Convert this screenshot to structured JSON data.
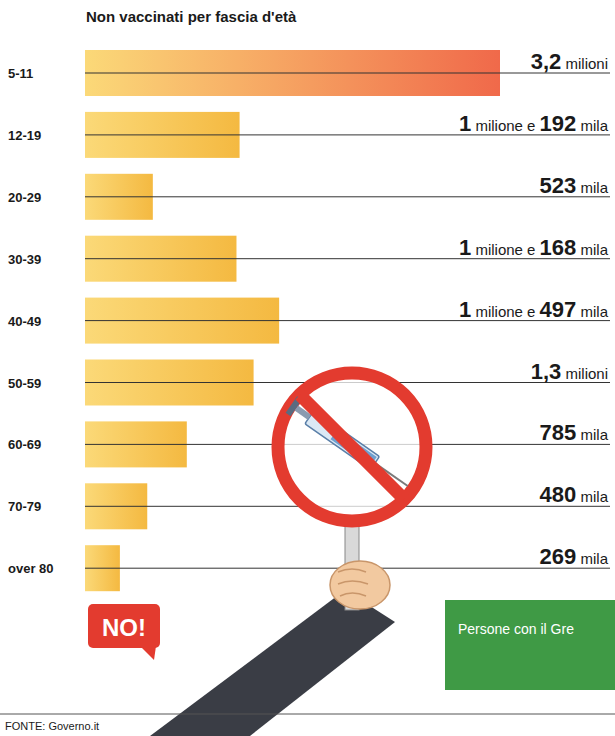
{
  "chart_data": {
    "type": "bar",
    "orientation": "horizontal",
    "title": "Non vaccinati per fascia d'età",
    "categories": [
      "5-11",
      "12-19",
      "20-29",
      "30-39",
      "40-49",
      "50-59",
      "60-69",
      "70-79",
      "over 80"
    ],
    "values": [
      3200000,
      1192000,
      523000,
      1168000,
      1497000,
      1300000,
      785000,
      480000,
      269000
    ],
    "value_labels": [
      "3,2 milioni",
      "1 milione e 192 mila",
      "523 mila",
      "1 milione e 168 mila",
      "1 milione e 497 mila",
      "1,3 milioni",
      "785 mila",
      "480 mila",
      "269 mila"
    ],
    "data_labels": true,
    "colors": [
      "#f0694a",
      "#f4b941",
      "#f4b941",
      "#f4b941",
      "#f4b941",
      "#f4b941",
      "#f4b941",
      "#f4b941",
      "#f4b941"
    ],
    "xlim": [
      0,
      3200000
    ],
    "tick_labels": "y",
    "grid": false,
    "annotations": [
      "NO!",
      "Persone con il Gre"
    ],
    "source": "FONTE: Governo.it"
  }
}
